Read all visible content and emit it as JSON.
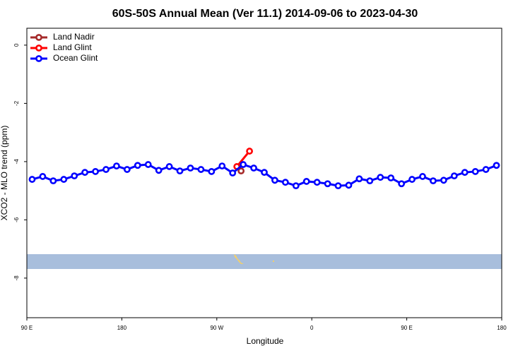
{
  "chart_data": {
    "type": "line",
    "title": "60S-50S Annual Mean (Ver 11.1)   2014-09-06 to 2023-04-30",
    "x_label": "Longitude",
    "y_label": "XCO2 - MLO trend (ppm)",
    "xlim": [
      90,
      540
    ],
    "ylim": [
      -9.36,
      0.58
    ],
    "xticks": [
      {
        "value": 90,
        "label": "90 E"
      },
      {
        "value": 180,
        "label": "180"
      },
      {
        "value": 270,
        "label": "90 W"
      },
      {
        "value": 360,
        "label": "0"
      },
      {
        "value": 450,
        "label": "90 E"
      },
      {
        "value": 540,
        "label": "180"
      }
    ],
    "yticks": [
      0,
      -2,
      -4,
      -6,
      -8
    ],
    "legend": "top-left",
    "series": [
      {
        "name": "Land Nadir",
        "color": "#a52a2a",
        "x": [
          293
        ],
        "values": [
          -4.32
        ]
      },
      {
        "name": "Land Glint",
        "color": "#ff0000",
        "x": [
          289,
          301
        ],
        "values": [
          -4.17,
          -3.64
        ]
      },
      {
        "name": "Ocean Glint",
        "color": "#0000ff",
        "x": [
          95,
          105,
          115,
          125,
          135,
          145,
          155,
          165,
          175,
          185,
          195,
          205,
          215,
          225,
          235,
          245,
          255,
          265,
          275,
          285,
          295,
          305,
          315,
          325,
          335,
          345,
          355,
          365,
          375,
          385,
          395,
          405,
          415,
          425,
          435,
          445,
          455,
          465,
          475,
          485,
          495,
          505,
          515,
          525,
          535
        ],
        "values": [
          -4.61,
          -4.51,
          -4.66,
          -4.61,
          -4.49,
          -4.37,
          -4.34,
          -4.27,
          -4.15,
          -4.27,
          -4.13,
          -4.1,
          -4.3,
          -4.17,
          -4.32,
          -4.22,
          -4.27,
          -4.34,
          -4.15,
          -4.39,
          -4.1,
          -4.22,
          -4.37,
          -4.64,
          -4.71,
          -4.83,
          -4.68,
          -4.71,
          -4.76,
          -4.83,
          -4.81,
          -4.59,
          -4.66,
          -4.54,
          -4.56,
          -4.76,
          -4.61,
          -4.51,
          -4.66,
          -4.64,
          -4.49,
          -4.37,
          -4.34,
          -4.27,
          -4.13
        ]
      }
    ]
  }
}
